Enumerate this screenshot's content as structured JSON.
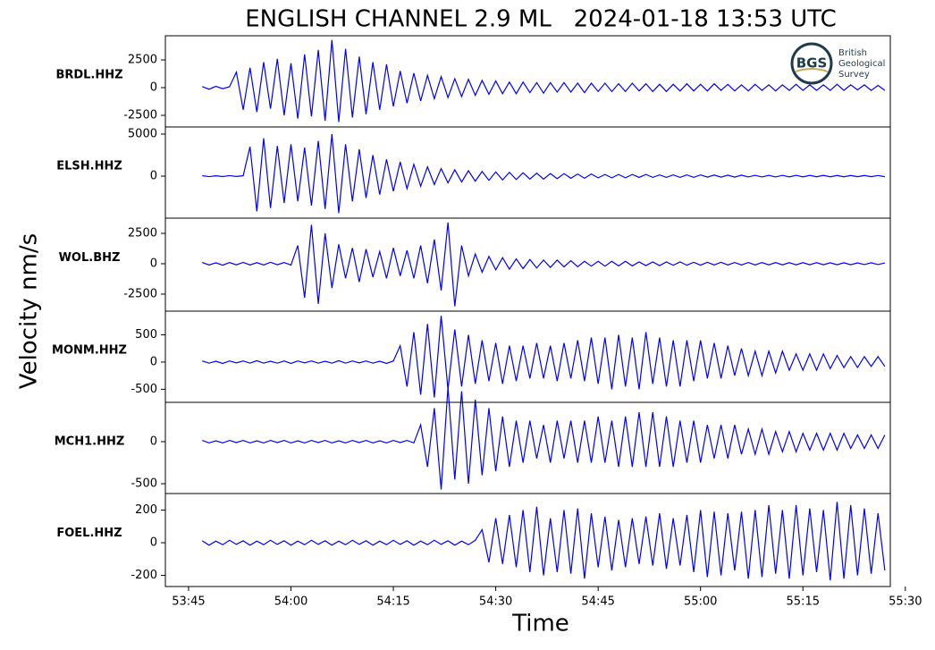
{
  "chart_data": {
    "type": "line",
    "title": "ENGLISH CHANNEL 2.9 ML   2024-01-18 13:53 UTC",
    "xlabel": "Time",
    "ylabel": "Velocity nm/s",
    "logo": {
      "abbr": "BGS",
      "lines": [
        "British",
        "Geological",
        "Survey"
      ]
    },
    "xlim": [
      3221.6,
      3327.8
    ],
    "xticks": [
      {
        "value": 3225,
        "label": "53:45"
      },
      {
        "value": 3240,
        "label": "54:00"
      },
      {
        "value": 3255,
        "label": "54:15"
      },
      {
        "value": 3270,
        "label": "54:30"
      },
      {
        "value": 3285,
        "label": "54:45"
      },
      {
        "value": 3300,
        "label": "55:00"
      },
      {
        "value": 3315,
        "label": "55:15"
      },
      {
        "value": 3330,
        "label": "55:30"
      }
    ],
    "x": [
      3227,
      3228,
      3229,
      3230,
      3231,
      3232,
      3233,
      3234,
      3235,
      3236,
      3237,
      3238,
      3239,
      3240,
      3241,
      3242,
      3243,
      3244,
      3245,
      3246,
      3247,
      3248,
      3249,
      3250,
      3251,
      3252,
      3253,
      3254,
      3255,
      3256,
      3257,
      3258,
      3259,
      3260,
      3261,
      3262,
      3263,
      3264,
      3265,
      3266,
      3267,
      3268,
      3269,
      3270,
      3271,
      3272,
      3273,
      3274,
      3275,
      3276,
      3277,
      3278,
      3279,
      3280,
      3281,
      3282,
      3283,
      3284,
      3285,
      3286,
      3287,
      3288,
      3289,
      3290,
      3291,
      3292,
      3293,
      3294,
      3295,
      3296,
      3297,
      3298,
      3299,
      3300,
      3301,
      3302,
      3303,
      3304,
      3305,
      3306,
      3307,
      3308,
      3309,
      3310,
      3311,
      3312,
      3313,
      3314,
      3315,
      3316,
      3317,
      3318,
      3319,
      3320,
      3321,
      3322,
      3323,
      3324,
      3325,
      3326,
      3327
    ],
    "series": [
      {
        "name": "BRDL.HHZ",
        "color": "#0000ff",
        "ylim": [
          -3550,
          4680
        ],
        "yticks": [
          -2500,
          0,
          2500
        ],
        "values": [
          100,
          -150,
          120,
          -100,
          80,
          1400,
          -2000,
          1800,
          -2200,
          2300,
          -1900,
          2600,
          -2500,
          2200,
          -2800,
          3000,
          -2600,
          3400,
          -3000,
          4300,
          -3100,
          3500,
          -2700,
          2800,
          -2400,
          2300,
          -2000,
          2100,
          -1700,
          1500,
          -1400,
          1300,
          -1200,
          1100,
          -1000,
          1000,
          -900,
          800,
          -800,
          750,
          -700,
          650,
          -600,
          600,
          -550,
          500,
          -550,
          500,
          -450,
          450,
          -500,
          450,
          -400,
          450,
          -400,
          400,
          -450,
          400,
          -350,
          400,
          -350,
          350,
          -350,
          400,
          -300,
          350,
          -350,
          300,
          -350,
          300,
          -300,
          350,
          -300,
          300,
          -300,
          350,
          -250,
          300,
          -300,
          250,
          -300,
          300,
          -250,
          250,
          -300,
          250,
          -250,
          300,
          -250,
          250,
          -250,
          250,
          -250,
          300,
          -250,
          250,
          -200,
          250,
          -250,
          200,
          -250
        ]
      },
      {
        "name": "ELSH.HHZ",
        "color": "#0000ff",
        "ylim": [
          -5000,
          5850
        ],
        "yticks": [
          0,
          5000
        ],
        "values": [
          50,
          -60,
          40,
          -50,
          60,
          -40,
          50,
          3500,
          -4200,
          4500,
          -3800,
          3600,
          -3200,
          3800,
          -3000,
          3400,
          -3500,
          4200,
          -3900,
          5000,
          -4400,
          3800,
          -3000,
          3200,
          -2600,
          2500,
          -2200,
          2000,
          -1800,
          1700,
          -1500,
          1400,
          -1200,
          1100,
          -1000,
          900,
          -800,
          750,
          -700,
          650,
          -600,
          550,
          -500,
          500,
          -450,
          450,
          -400,
          400,
          -350,
          350,
          -350,
          300,
          -300,
          300,
          -250,
          250,
          -250,
          250,
          -200,
          200,
          -200,
          200,
          -200,
          200,
          -150,
          200,
          -150,
          150,
          -150,
          150,
          -150,
          150,
          -150,
          150,
          -120,
          130,
          -120,
          120,
          -120,
          120,
          -100,
          100,
          -100,
          100,
          -100,
          100,
          -90,
          100,
          -90,
          90,
          -80,
          90,
          -80,
          80,
          -80,
          80,
          -70,
          80,
          -70,
          70,
          -70
        ]
      },
      {
        "name": "WOL.BHZ",
        "color": "#0000ff",
        "ylim": [
          -3900,
          3750
        ],
        "yticks": [
          -2500,
          0,
          2500
        ],
        "values": [
          100,
          -100,
          80,
          -120,
          100,
          -90,
          110,
          -100,
          90,
          -100,
          120,
          -80,
          100,
          -110,
          1500,
          -2800,
          3200,
          -3300,
          2500,
          -2000,
          1600,
          -1200,
          1300,
          -1500,
          1200,
          -1100,
          1000,
          -1200,
          1300,
          -1000,
          1100,
          -1200,
          1500,
          -1600,
          2000,
          -2200,
          3400,
          -3500,
          1500,
          -1000,
          800,
          -700,
          600,
          -500,
          500,
          -450,
          400,
          -400,
          350,
          -350,
          300,
          -300,
          300,
          -250,
          250,
          -250,
          200,
          -200,
          200,
          -200,
          200,
          -180,
          200,
          -180,
          150,
          -150,
          150,
          -150,
          150,
          -120,
          150,
          -120,
          120,
          -120,
          120,
          -100,
          120,
          -100,
          100,
          -100,
          100,
          -100,
          100,
          -90,
          100,
          -90,
          90,
          -90,
          90,
          -80,
          90,
          -80,
          80,
          -80,
          80,
          -80,
          70,
          -70,
          80,
          -70,
          70
        ]
      },
      {
        "name": "MONM.HHZ",
        "color": "#0000ff",
        "ylim": [
          -740,
          935
        ],
        "yticks": [
          -500,
          0,
          500
        ],
        "values": [
          20,
          -20,
          15,
          -25,
          20,
          -15,
          20,
          -20,
          25,
          -20,
          15,
          -20,
          20,
          -25,
          20,
          -15,
          20,
          -20,
          15,
          -20,
          25,
          -20,
          20,
          -15,
          20,
          -20,
          15,
          -25,
          20,
          300,
          -450,
          550,
          -600,
          700,
          -650,
          850,
          -500,
          600,
          -450,
          500,
          -400,
          400,
          -350,
          350,
          -400,
          300,
          -350,
          300,
          -300,
          350,
          -300,
          300,
          -350,
          350,
          -300,
          400,
          -350,
          450,
          -400,
          450,
          -500,
          500,
          -450,
          450,
          -500,
          550,
          -400,
          450,
          -450,
          400,
          -450,
          400,
          -350,
          400,
          -300,
          350,
          -300,
          300,
          -250,
          250,
          -250,
          200,
          -250,
          200,
          -200,
          200,
          -150,
          150,
          -150,
          150,
          -150,
          150,
          -120,
          120,
          -100,
          100,
          -100,
          100,
          -80,
          100,
          -80
        ]
      },
      {
        "name": "MCH1.HHZ",
        "color": "#0000ff",
        "ylim": [
          -617,
          468
        ],
        "yticks": [
          -500,
          0
        ],
        "values": [
          15,
          -15,
          10,
          -15,
          15,
          -10,
          15,
          -15,
          10,
          -15,
          15,
          -10,
          15,
          -15,
          10,
          -15,
          15,
          -10,
          15,
          -15,
          10,
          -15,
          15,
          -10,
          15,
          -15,
          10,
          -15,
          15,
          -10,
          15,
          -15,
          200,
          -300,
          400,
          -570,
          650,
          -450,
          600,
          -500,
          500,
          -400,
          400,
          -350,
          300,
          -300,
          250,
          -250,
          250,
          -200,
          200,
          -250,
          250,
          -200,
          250,
          -250,
          250,
          -250,
          300,
          -250,
          250,
          -300,
          300,
          -300,
          350,
          -300,
          350,
          -300,
          300,
          -300,
          250,
          -250,
          250,
          -250,
          200,
          -200,
          200,
          -200,
          200,
          -150,
          150,
          -150,
          150,
          -150,
          120,
          -120,
          120,
          -120,
          100,
          -100,
          100,
          -100,
          100,
          -100,
          100,
          -80,
          80,
          -80,
          80,
          -80,
          80
        ]
      },
      {
        "name": "FOEL.HHZ",
        "color": "#0000ff",
        "ylim": [
          -268,
          301
        ],
        "yticks": [
          -200,
          0,
          200
        ],
        "values": [
          12,
          -15,
          10,
          -12,
          15,
          -10,
          12,
          -15,
          10,
          -12,
          15,
          -10,
          12,
          -15,
          10,
          -12,
          15,
          -10,
          12,
          -15,
          10,
          -12,
          15,
          -10,
          12,
          -15,
          10,
          -12,
          15,
          -10,
          12,
          -15,
          10,
          -12,
          15,
          -10,
          12,
          -15,
          10,
          -12,
          15,
          80,
          -120,
          150,
          -130,
          170,
          -150,
          200,
          -180,
          220,
          -200,
          150,
          -180,
          200,
          -190,
          210,
          -220,
          180,
          -150,
          160,
          -170,
          140,
          -150,
          150,
          -130,
          160,
          -140,
          180,
          -160,
          150,
          -140,
          170,
          -180,
          200,
          -210,
          190,
          -200,
          180,
          -170,
          190,
          -220,
          200,
          -210,
          230,
          -190,
          200,
          -220,
          230,
          -200,
          210,
          -180,
          200,
          -230,
          250,
          -220,
          230,
          -200,
          210,
          -190,
          180,
          -170
        ]
      }
    ]
  }
}
